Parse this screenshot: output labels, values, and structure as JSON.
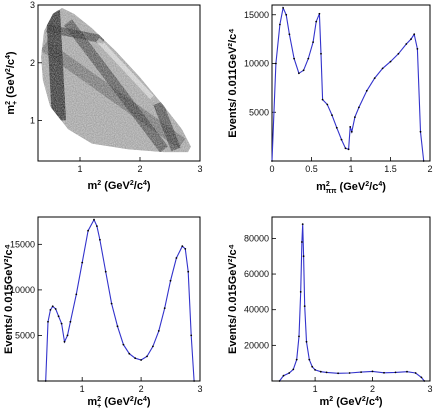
{
  "chart_data": [
    {
      "type": "heatmap",
      "id": "dalitz",
      "xlabel": "m² (GeV²/c⁴)",
      "xlabel_main": "m",
      "xlabel_sub": "",
      "xlabel_unit": "(GeV",
      "ylabel": "m²₊ (GeV²/c⁴)",
      "ylabel_main": "m",
      "ylabel_sub": "+",
      "ylabel_unit": "(GeV",
      "xlim": [
        0.3,
        3.0
      ],
      "ylim": [
        0.3,
        3.0
      ],
      "xticks": [
        1,
        2,
        3
      ],
      "yticks": [
        1,
        2,
        3
      ],
      "description_colors": {
        "fill": "#1a1a1a",
        "light": "#cfcfcf"
      }
    },
    {
      "type": "line",
      "id": "mpipi",
      "xlabel_main": "m",
      "xlabel_sub": "ππ",
      "xlabel_unit": "(GeV",
      "ylabel": "Events/ 0.011GeV²/c⁴",
      "xlim": [
        0,
        2
      ],
      "ylim": [
        0,
        16000
      ],
      "xticks": [
        0,
        0.5,
        1,
        1.5,
        2
      ],
      "yticks": [
        5000,
        10000,
        15000
      ],
      "series": [
        {
          "color": "#3333cc",
          "x": [
            0.0,
            0.05,
            0.1,
            0.14,
            0.18,
            0.22,
            0.28,
            0.34,
            0.4,
            0.46,
            0.52,
            0.56,
            0.6,
            0.62,
            0.64,
            0.7,
            0.76,
            0.82,
            0.88,
            0.93,
            0.97,
            0.99,
            1.01,
            1.05,
            1.1,
            1.2,
            1.3,
            1.4,
            1.5,
            1.6,
            1.7,
            1.76,
            1.8,
            1.84,
            1.88,
            1.92
          ],
          "y": [
            0,
            10000,
            14000,
            15700,
            15000,
            13000,
            10500,
            9000,
            9300,
            10500,
            12200,
            14300,
            15100,
            11000,
            6300,
            5800,
            4700,
            3400,
            2200,
            1300,
            1200,
            3500,
            3000,
            4500,
            5500,
            7200,
            8500,
            9500,
            10200,
            11000,
            12000,
            12500,
            13000,
            11500,
            3000,
            0
          ]
        }
      ]
    },
    {
      "type": "line",
      "id": "mplus",
      "xlabel_main": "m",
      "xlabel_sub": "+",
      "xlabel_unit": "(GeV",
      "ylabel": "Events/ 0.015GeV²/c⁴",
      "xlim": [
        0.25,
        3.0
      ],
      "ylim": [
        0,
        18000
      ],
      "xticks": [
        1,
        2,
        3
      ],
      "yticks": [
        5000,
        10000,
        15000
      ],
      "series": [
        {
          "color": "#3333cc",
          "x": [
            0.38,
            0.42,
            0.46,
            0.5,
            0.55,
            0.6,
            0.65,
            0.7,
            0.75,
            0.8,
            0.9,
            1.0,
            1.1,
            1.2,
            1.25,
            1.3,
            1.4,
            1.5,
            1.6,
            1.7,
            1.8,
            1.9,
            2.0,
            2.1,
            2.2,
            2.3,
            2.4,
            2.5,
            2.6,
            2.7,
            2.75,
            2.8,
            2.85,
            2.9
          ],
          "y": [
            0,
            6500,
            7800,
            8200,
            7900,
            7100,
            6300,
            4300,
            5000,
            6500,
            9500,
            13000,
            16500,
            17700,
            17000,
            15500,
            12000,
            8500,
            6000,
            4000,
            3000,
            2500,
            2300,
            2700,
            3800,
            5500,
            8000,
            11000,
            13500,
            14800,
            14500,
            12000,
            5000,
            0
          ]
        }
      ]
    },
    {
      "type": "line",
      "id": "m2",
      "xlabel_main": "m",
      "xlabel_sub": "",
      "xlabel_unit": "(GeV",
      "ylabel": "Events/ 0.015GeV²/c⁴",
      "xlim": [
        0.25,
        3.0
      ],
      "ylim": [
        0,
        92000
      ],
      "xticks": [
        1,
        2,
        3
      ],
      "yticks": [
        20000,
        40000,
        60000,
        80000
      ],
      "series": [
        {
          "color": "#3333cc",
          "x": [
            0.38,
            0.45,
            0.55,
            0.62,
            0.68,
            0.72,
            0.75,
            0.77,
            0.785,
            0.8,
            0.82,
            0.85,
            0.9,
            0.95,
            1.0,
            1.1,
            1.2,
            1.4,
            1.6,
            1.8,
            2.0,
            2.2,
            2.4,
            2.6,
            2.75,
            2.85,
            2.9
          ],
          "y": [
            0,
            3000,
            4500,
            6500,
            12000,
            25000,
            50000,
            78000,
            88000,
            70000,
            42000,
            22000,
            12000,
            8000,
            6200,
            5200,
            4800,
            4300,
            4500,
            5000,
            5400,
            4600,
            4800,
            5200,
            4500,
            2000,
            0
          ]
        }
      ]
    }
  ]
}
